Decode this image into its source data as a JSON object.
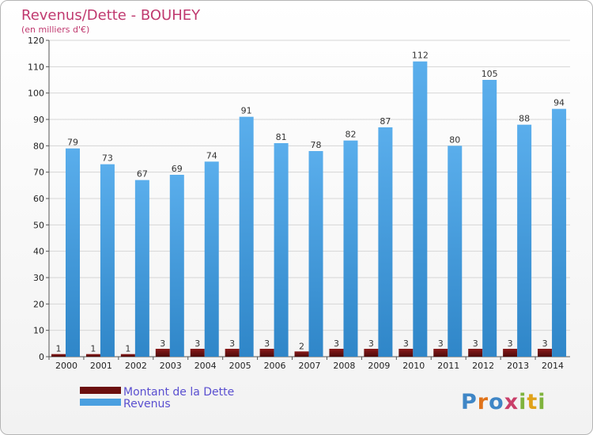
{
  "chart_data": {
    "type": "bar",
    "title": "Revenus/Dette - BOUHEY",
    "subtitle": "(en milliers d'€)",
    "categories": [
      "2000",
      "2001",
      "2002",
      "2003",
      "2004",
      "2005",
      "2006",
      "2007",
      "2008",
      "2009",
      "2010",
      "2011",
      "2012",
      "2013",
      "2014"
    ],
    "series": [
      {
        "name": "Montant de la Dette",
        "color": "#6b0f0f",
        "values": [
          1,
          1,
          1,
          3,
          3,
          3,
          3,
          2,
          3,
          3,
          3,
          3,
          3,
          3,
          3
        ]
      },
      {
        "name": "Revenus",
        "color": "#4a9fe0",
        "values": [
          79,
          73,
          67,
          69,
          74,
          91,
          81,
          78,
          82,
          87,
          112,
          80,
          105,
          88,
          94
        ]
      }
    ],
    "ylim": [
      0,
      120
    ],
    "yticks": [
      0,
      10,
      20,
      30,
      40,
      50,
      60,
      70,
      80,
      90,
      100,
      110,
      120
    ],
    "grid": true,
    "legend": "bottom-left"
  },
  "logo": {
    "letters": [
      {
        "ch": "P",
        "color": "#3f86c6"
      },
      {
        "ch": "r",
        "color": "#e0731a"
      },
      {
        "ch": "o",
        "color": "#3f86c6"
      },
      {
        "ch": "x",
        "color": "#c93f6a"
      },
      {
        "ch": "i",
        "color": "#7fb33d"
      },
      {
        "ch": "t",
        "color": "#e0a21a"
      },
      {
        "ch": "i",
        "color": "#7fb33d"
      }
    ]
  }
}
